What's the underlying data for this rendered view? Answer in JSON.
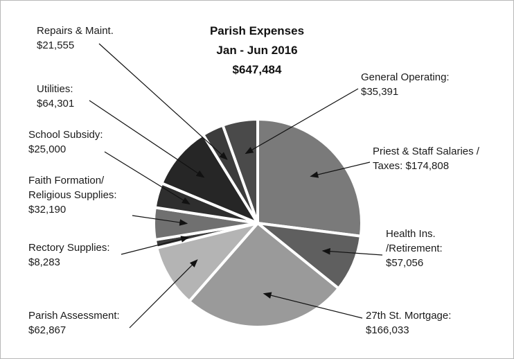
{
  "chart_data": {
    "type": "pie",
    "title": "Parish Expenses",
    "subtitle": "Jan - Jun 2016",
    "total": "$647,484",
    "slices": [
      {
        "key": "general",
        "label": [
          "General Operating:",
          "$35,391"
        ],
        "value": 35391,
        "color": "#4a4a4a"
      },
      {
        "key": "salaries",
        "label": [
          "Priest & Staff Salaries /",
          "Taxes: $174,808"
        ],
        "value": 174808,
        "color": "#7a7a7a"
      },
      {
        "key": "health",
        "label": [
          "Health Ins.",
          "/Retirement:",
          "$57,056"
        ],
        "value": 57056,
        "color": "#5f5f5f"
      },
      {
        "key": "mortgage",
        "label": [
          "27th St. Mortgage:",
          "$166,033"
        ],
        "value": 166033,
        "color": "#9a9a9a"
      },
      {
        "key": "assessment",
        "label": [
          "Parish Assessment:",
          "$62,867"
        ],
        "value": 62867,
        "color": "#b4b4b4"
      },
      {
        "key": "rectory",
        "label": [
          "Rectory Supplies:",
          "$8,283"
        ],
        "value": 8283,
        "color": "#3a3a3a"
      },
      {
        "key": "faith",
        "label": [
          "Faith Formation/",
          "Religious Supplies:",
          "$32,190"
        ],
        "value": 32190,
        "color": "#707070"
      },
      {
        "key": "school",
        "label": [
          "School Subsidy:",
          "$25,000"
        ],
        "value": 25000,
        "color": "#2e2e2e"
      },
      {
        "key": "utilities",
        "label": [
          "Utilities:",
          "$64,301"
        ],
        "value": 64301,
        "color": "#262626"
      },
      {
        "key": "repairs",
        "label": [
          "Repairs & Maint.",
          "$21,555"
        ],
        "value": 21555,
        "color": "#3c3c3c"
      }
    ]
  }
}
